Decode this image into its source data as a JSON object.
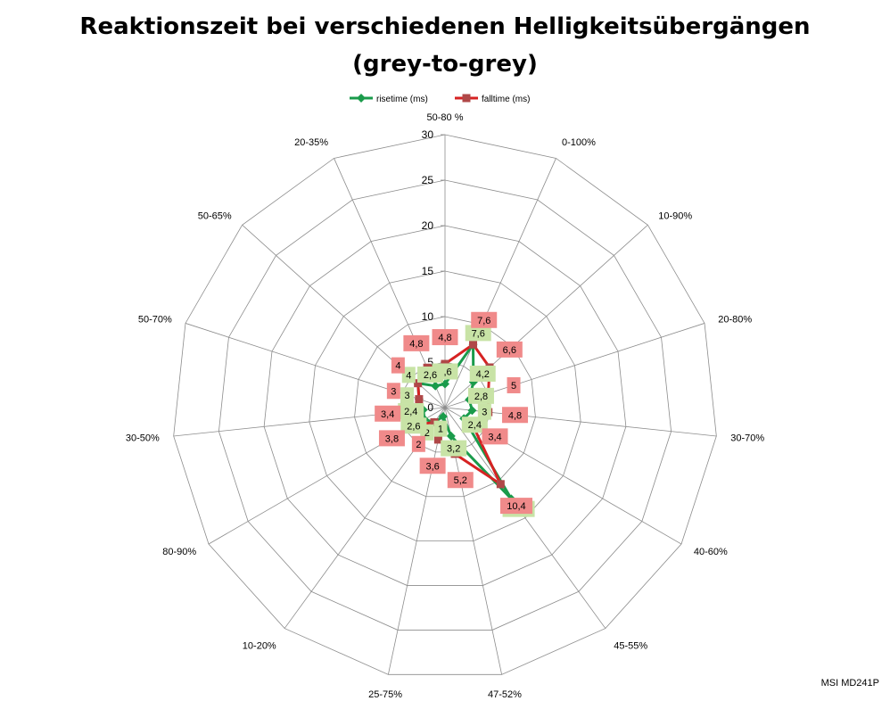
{
  "chart_data": {
    "type": "radar",
    "title_line1": "Reaktionszeit bei verschiedenen Helligkeitsübergängen",
    "title_line2": "(grey-to-grey)",
    "categories": [
      "50-80 %",
      "0-100%",
      "10-90%",
      "20-80%",
      "30-70%",
      "40-60%",
      "45-55%",
      "47-52%",
      "25-75%",
      "10-20%",
      "80-90%",
      "30-50%",
      "50-70%",
      "50-65%",
      "20-35%"
    ],
    "rlim": [
      0,
      30
    ],
    "ticks": [
      "0",
      "5",
      "10",
      "15",
      "20",
      "25",
      "30"
    ],
    "grid": true,
    "legend_position": "top",
    "series": [
      {
        "name": "risetime (ms)",
        "color": "#1a9b4b",
        "label_bg": "#c8e3a6",
        "values": [
          2.6,
          7.6,
          4.2,
          2.8,
          3,
          2.4,
          12.4,
          3.2,
          1,
          2,
          2.6,
          2.4,
          3,
          4,
          2.6
        ],
        "labels": [
          "2,6",
          "7,6",
          "4,2",
          "2,8",
          "3",
          "2,4",
          "12,4",
          "3,2",
          "1",
          "2",
          "2,6",
          "2,4",
          "3",
          "4",
          "2,6"
        ]
      },
      {
        "name": "falltime (ms)",
        "color": "#d62222",
        "label_bg": "#f08a8a",
        "values": [
          4.8,
          7.6,
          6.6,
          5,
          4.8,
          3.4,
          10.4,
          5.2,
          3.6,
          2,
          3.8,
          3.4,
          3,
          4,
          4.8
        ],
        "labels": [
          "4,8",
          "7,6",
          "6,6",
          "5",
          "4,8",
          "3,4",
          "10,4",
          "5,2",
          "3,6",
          "2",
          "3,8",
          "3,4",
          "3",
          "4",
          "4,8"
        ]
      }
    ],
    "credit": "MSI MD241P"
  }
}
